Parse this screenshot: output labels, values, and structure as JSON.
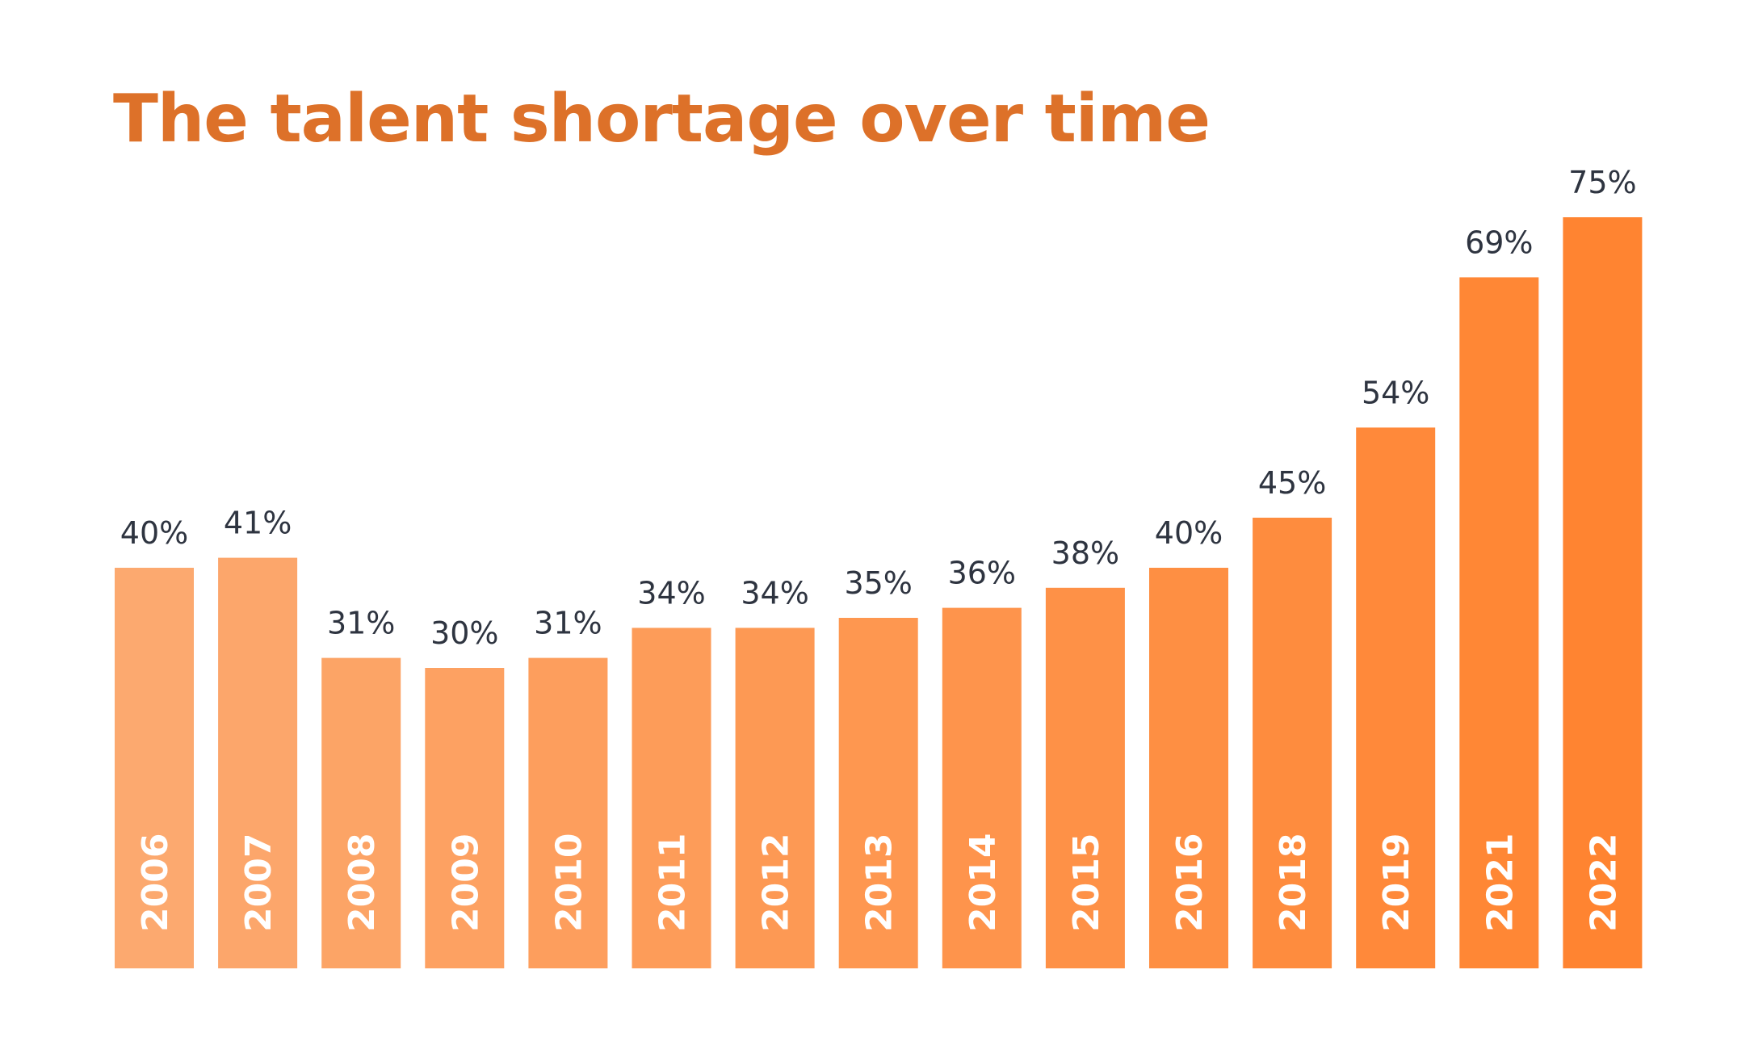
{
  "chart_data": {
    "type": "bar",
    "title": "The talent shortage over time",
    "xlabel": "",
    "ylabel": "",
    "categories": [
      "2006",
      "2007",
      "2008",
      "2009",
      "2010",
      "2011",
      "2012",
      "2013",
      "2014",
      "2015",
      "2016",
      "2018",
      "2019",
      "2021",
      "2022"
    ],
    "values": [
      40,
      41,
      31,
      30,
      31,
      34,
      34,
      35,
      36,
      38,
      40,
      45,
      54,
      69,
      75
    ],
    "value_labels": [
      "40%",
      "41%",
      "31%",
      "30%",
      "31%",
      "34%",
      "34%",
      "35%",
      "36%",
      "38%",
      "40%",
      "45%",
      "54%",
      "69%",
      "75%"
    ],
    "ylim": [
      0,
      75
    ],
    "grid": false,
    "legend": "none",
    "colors": {
      "title": "#dd7129",
      "bar_start": "#fca96f",
      "bar_end": "#ff8431",
      "value_label": "#2e3440",
      "year_label": "#ffffff"
    }
  }
}
